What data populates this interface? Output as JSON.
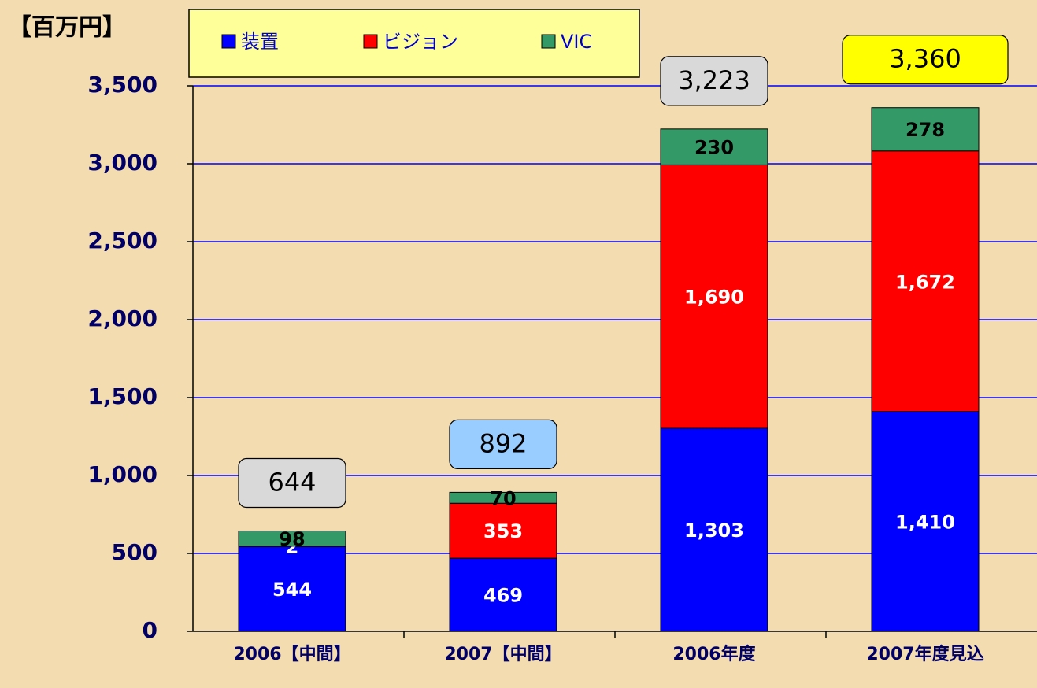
{
  "chart_data": {
    "type": "stacked_bar",
    "unit_label": "【百万円】",
    "categories": [
      "2006【中間】",
      "2007【中間】",
      "2006年度",
      "2007年度見込"
    ],
    "series": [
      {
        "name": "装置",
        "color": "#0000ff",
        "label_color": "#ffffff",
        "values": [
          544,
          469,
          1303,
          1410
        ],
        "value_labels": [
          "544",
          "469",
          "1,303",
          "1,410"
        ]
      },
      {
        "name": "ビジョン",
        "color": "#ff0000",
        "label_color": "#ffffff",
        "values": [
          2,
          353,
          1690,
          1672
        ],
        "value_labels": [
          "2",
          "353",
          "1,690",
          "1,672"
        ]
      },
      {
        "name": "VIC",
        "color": "#339966",
        "label_color": "#000000",
        "values": [
          98,
          70,
          230,
          278
        ],
        "value_labels": [
          "98",
          "70",
          "230",
          "278"
        ]
      }
    ],
    "totals": [
      644,
      892,
      3223,
      3360
    ],
    "total_labels": [
      "644",
      "892",
      "3,223",
      "3,360"
    ],
    "total_colors": [
      "#d9d9d9",
      "#99ccff",
      "#d9d9d9",
      "#ffff00"
    ],
    "ylim": [
      0,
      3500
    ],
    "yticks": [
      0,
      500,
      {
        "value": 1000,
        "label": "1,000"
      },
      {
        "value": 1500,
        "label": "1,500"
      },
      {
        "value": 2000,
        "label": "2,000"
      },
      {
        "value": 2500,
        "label": "2,500"
      },
      {
        "value": 3000,
        "label": "3,000"
      },
      {
        "value": 3500,
        "label": "3,500"
      }
    ],
    "grid": true
  }
}
